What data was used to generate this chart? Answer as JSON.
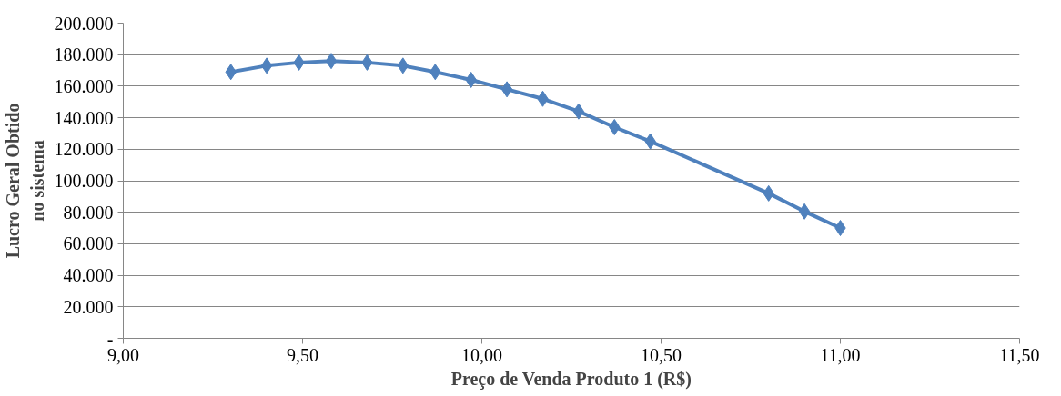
{
  "chart_data": {
    "type": "line",
    "xlabel": "Preço de Venda Produto 1 (R$)",
    "ylabel": "Lucro Geral Obtido no sistema",
    "x": [
      9.3,
      9.4,
      9.49,
      9.58,
      9.68,
      9.78,
      9.87,
      9.97,
      10.07,
      10.17,
      10.27,
      10.37,
      10.47,
      10.8,
      10.9,
      11.0
    ],
    "series": [
      {
        "color": "#4f81bd",
        "values": [
          169000,
          173000,
          175000,
          176000,
          175000,
          173000,
          169000,
          164000,
          158000,
          152000,
          144000,
          134000,
          125000,
          92000,
          80500,
          70000
        ]
      }
    ],
    "xlim": [
      9,
      11.5
    ],
    "xticks": [
      {
        "value": 9,
        "label": "9,00"
      },
      {
        "value": 9.5,
        "label": "9,50"
      },
      {
        "value": 10,
        "label": "10,00"
      },
      {
        "value": 10.5,
        "label": "10,50"
      },
      {
        "value": 11,
        "label": "11,00"
      },
      {
        "value": 11.5,
        "label": "11,50"
      }
    ],
    "ylim": [
      0,
      200000
    ],
    "yticks": [
      {
        "value": 0,
        "label": "-"
      },
      {
        "value": 20000,
        "label": "20.000"
      },
      {
        "value": 40000,
        "label": "40.000"
      },
      {
        "value": 60000,
        "label": "60.000"
      },
      {
        "value": 80000,
        "label": "80.000"
      },
      {
        "value": 100000,
        "label": "100.000"
      },
      {
        "value": 120000,
        "label": "120.000"
      },
      {
        "value": 140000,
        "label": "140.000"
      },
      {
        "value": 160000,
        "label": "160.000"
      },
      {
        "value": 180000,
        "label": "180.000"
      },
      {
        "value": 200000,
        "label": "200.000"
      }
    ],
    "grid": "y",
    "marker": "diamond",
    "line_style": "solid"
  }
}
